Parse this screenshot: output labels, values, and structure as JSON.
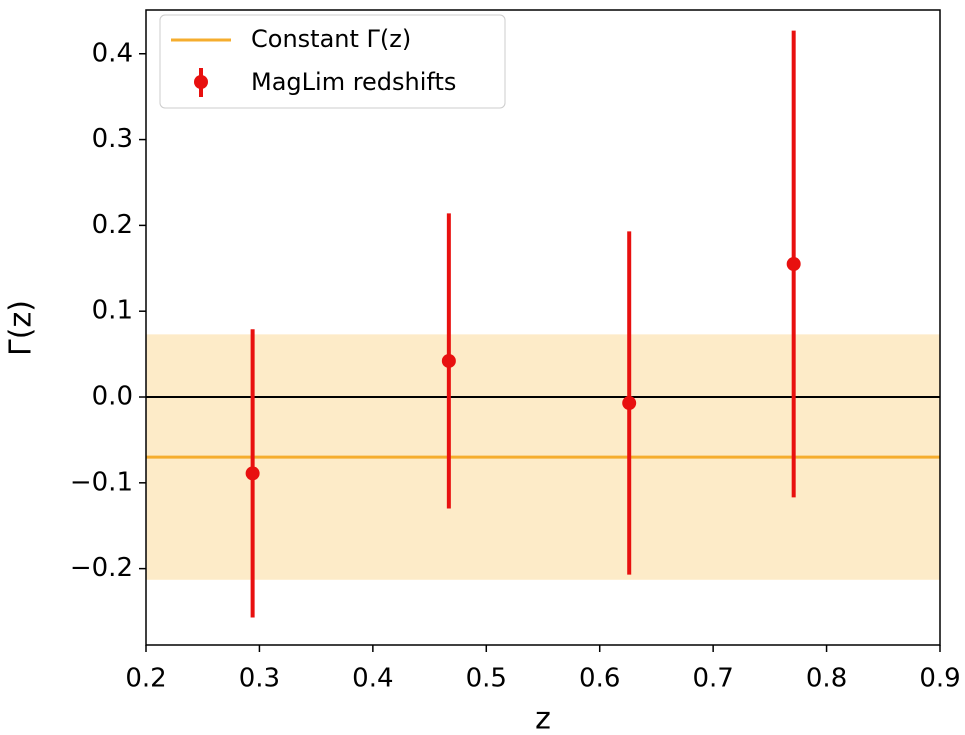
{
  "chart_data": {
    "type": "errorbar",
    "x_label": "z",
    "y_label": "Γ(z)",
    "xlim": [
      0.2,
      0.9
    ],
    "xticks": [
      0.2,
      0.3,
      0.4,
      0.5,
      0.6,
      0.7,
      0.8,
      0.9
    ],
    "ylim": [
      -0.289,
      0.451
    ],
    "yticks": [
      {
        "value": -0.2,
        "label": "−0.2"
      },
      {
        "value": -0.1,
        "label": "−0.1"
      },
      {
        "value": 0,
        "label": "0.0"
      },
      0.1,
      0.2,
      0.3,
      0.4
    ],
    "zero_line": 0,
    "reference": {
      "name": "Constant Γ(z)",
      "value": -0.07,
      "band": [
        -0.213,
        0.073
      ],
      "color": "#f5ad2e",
      "band_color": "#fdebc8"
    },
    "x": [
      0.294,
      0.467,
      0.626,
      0.771
    ],
    "series": [
      {
        "name": "MagLim redshifts",
        "color": "#e8100f",
        "values": [
          -0.089,
          0.042,
          -0.007,
          0.155
        ],
        "errors": [
          0.168,
          0.172,
          0.2,
          0.272
        ]
      }
    ],
    "legend": "upper left"
  }
}
